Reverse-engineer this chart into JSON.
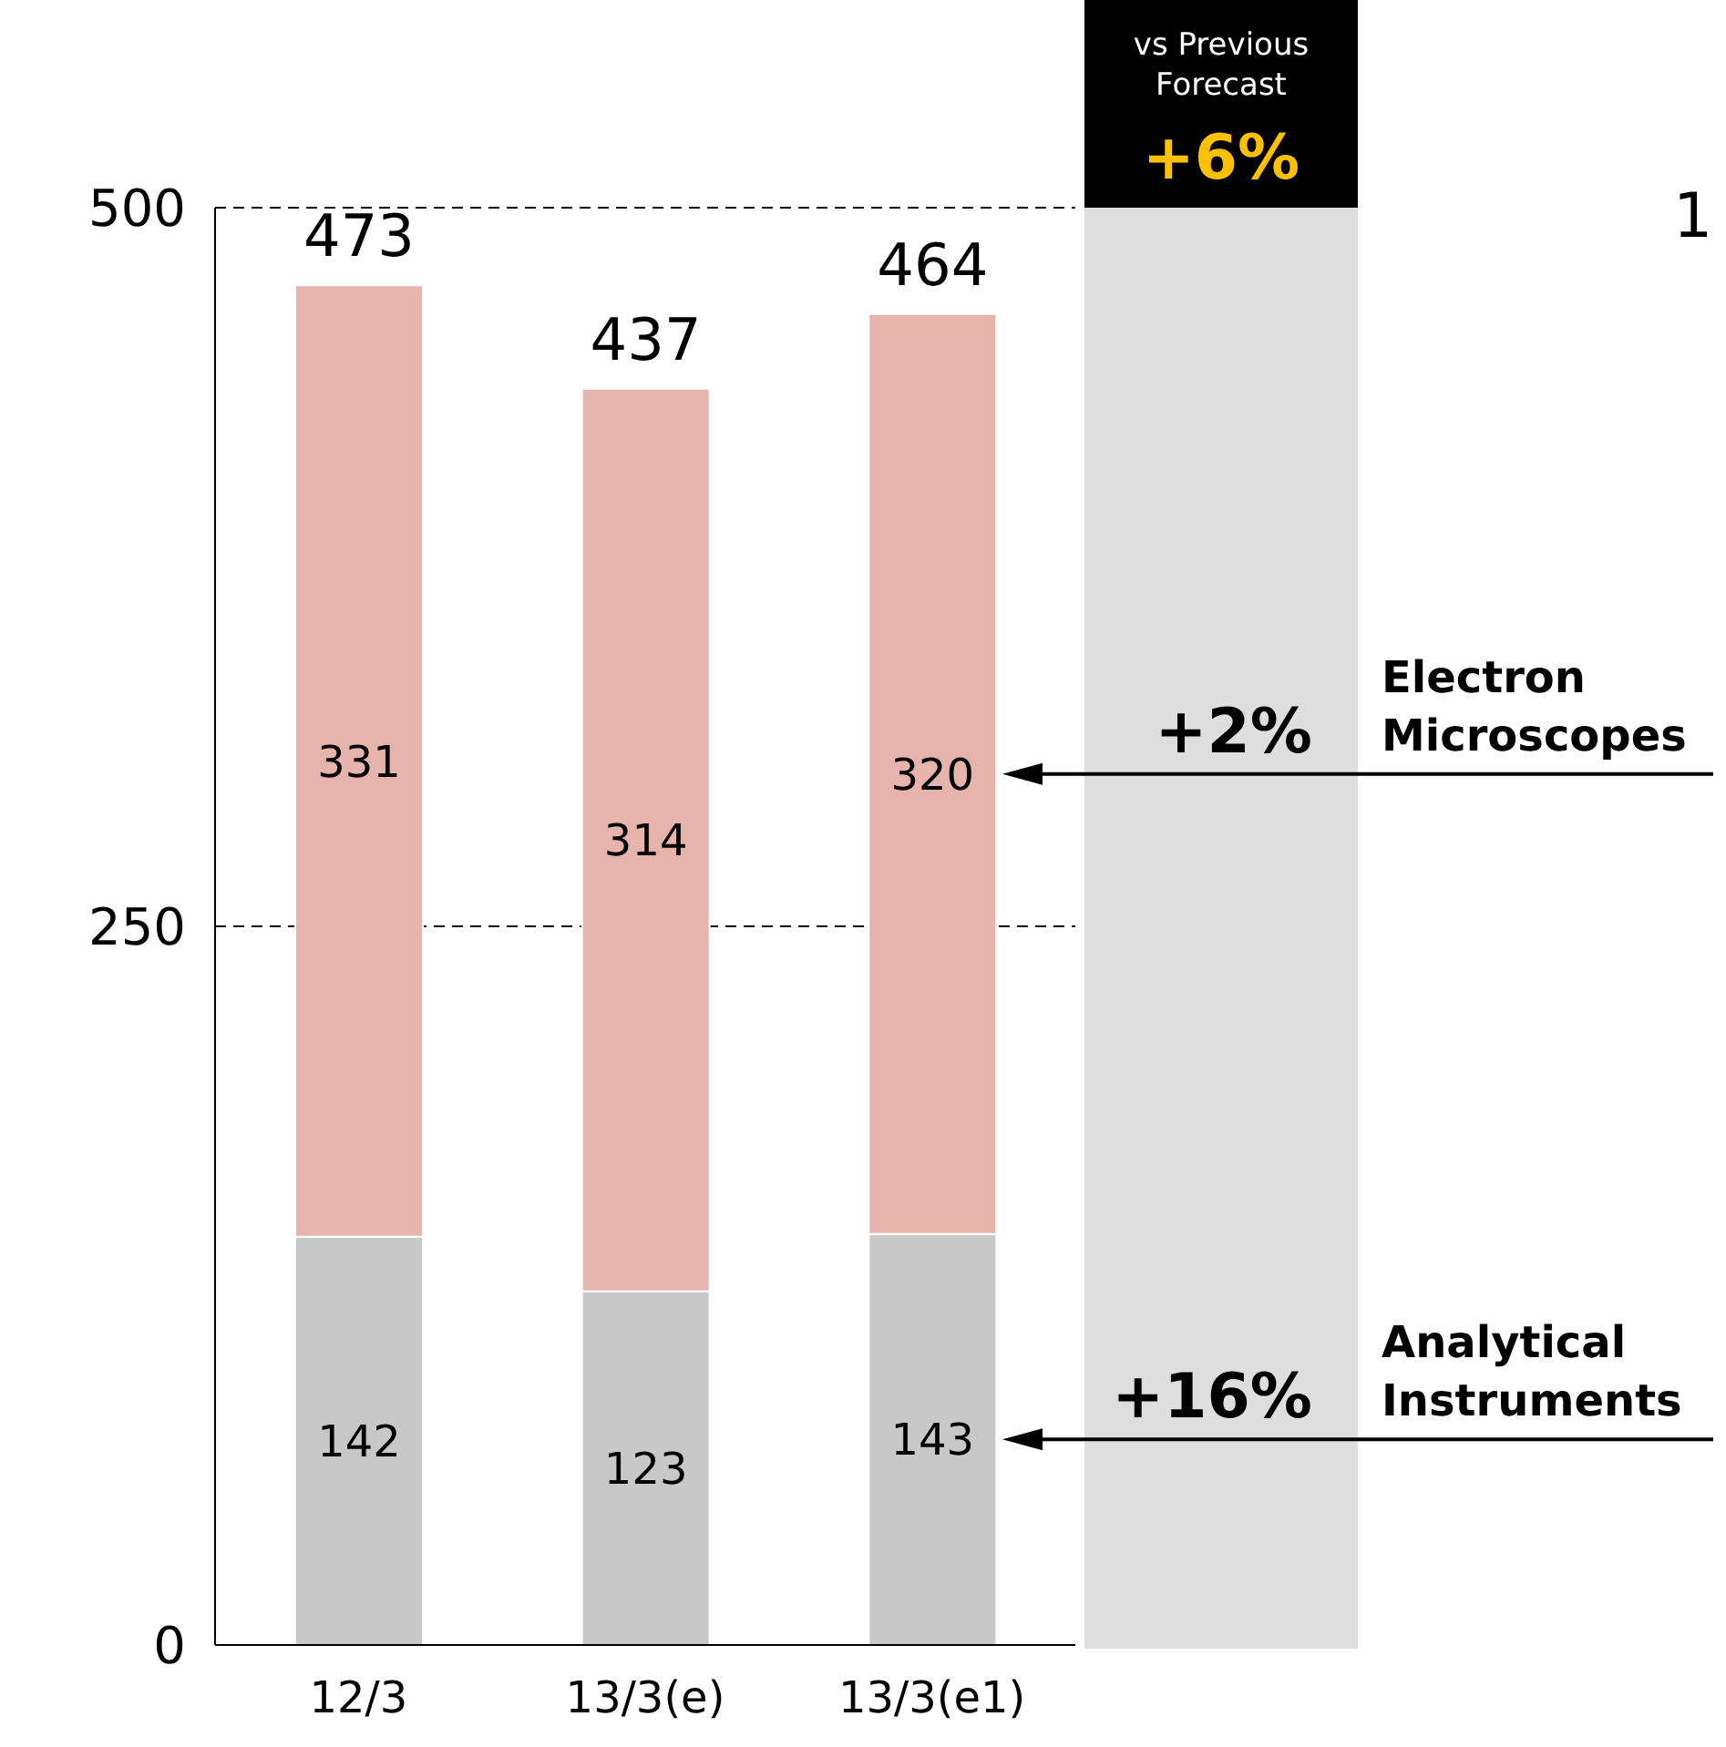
{
  "chart_data": {
    "type": "bar",
    "stacked": true,
    "categories": [
      "12/3",
      "13/3(e)",
      "13/3(e1)"
    ],
    "series": [
      {
        "name": "Analytical Instruments",
        "color": "#c8c8c8",
        "values": [
          142,
          123,
          143
        ]
      },
      {
        "name": "Electron Microscopes",
        "color": "#e6b4ac",
        "values": [
          331,
          314,
          320
        ]
      }
    ],
    "ylim": [
      0,
      500
    ],
    "yticks": [
      0,
      250,
      500
    ],
    "grid": "y",
    "data_labels": true,
    "totals": [
      "473",
      "437",
      "464"
    ],
    "annotations": [
      "vs Previous Forecast",
      "+6%",
      "+16%",
      "+2%",
      "1"
    ]
  }
}
